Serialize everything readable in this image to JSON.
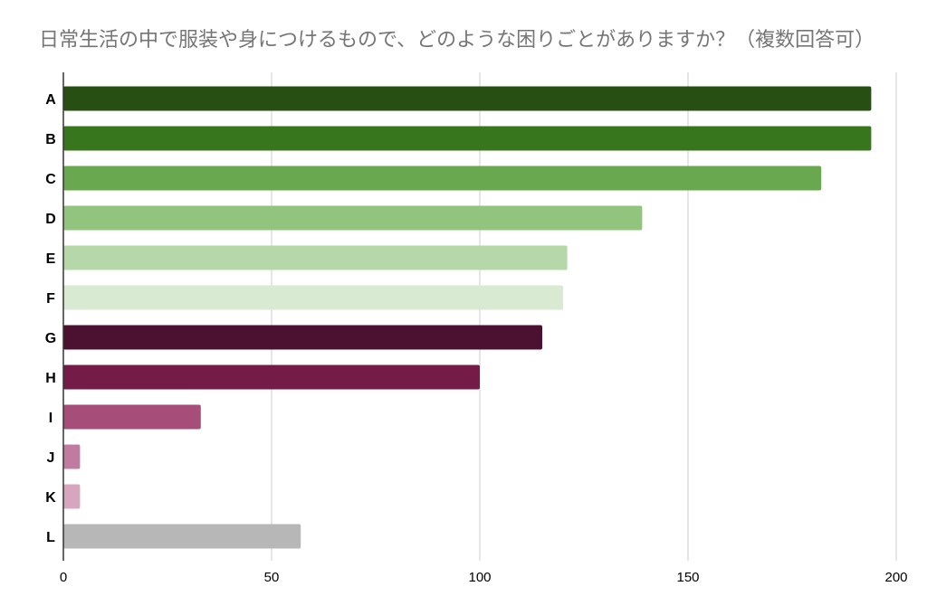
{
  "chart_data": {
    "type": "bar",
    "orientation": "horizontal",
    "title": "日常生活の中で服装や身につけるもので、どのような困りごとがありますか？（複数回答可）",
    "categories": [
      "A",
      "B",
      "C",
      "D",
      "E",
      "F",
      "G",
      "H",
      "I",
      "J",
      "K",
      "L"
    ],
    "values": [
      194,
      194,
      182,
      139,
      121,
      120,
      115,
      100,
      33,
      4,
      4,
      57
    ],
    "colors": [
      "#274e13",
      "#38761d",
      "#6aa84f",
      "#93c47d",
      "#b6d7a8",
      "#d9ead3",
      "#4c1130",
      "#741b47",
      "#a64d79",
      "#c27ba0",
      "#d5a6bd",
      "#b7b7b7"
    ],
    "xlim": [
      0,
      200
    ],
    "xticks": [
      0,
      50,
      100,
      150,
      200
    ],
    "grid": true,
    "legend": "none"
  }
}
